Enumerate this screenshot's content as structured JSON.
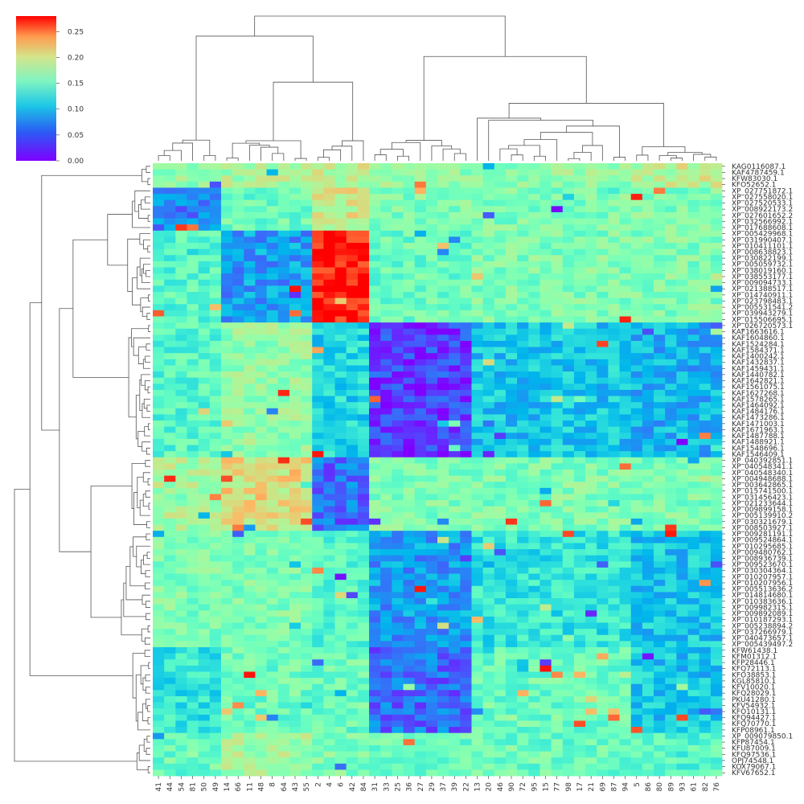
{
  "chart_data": {
    "type": "heatmap",
    "title": "",
    "xlabel": "",
    "ylabel": "",
    "colormap": "rainbow",
    "value_range": [
      0.0,
      0.28
    ],
    "colorbar": {
      "ticks": [
        0.0,
        0.05,
        0.1,
        0.15,
        0.2,
        0.25
      ],
      "tick_labels": [
        "0.00",
        "0.05",
        "0.10",
        "0.15",
        "0.20",
        "0.25"
      ]
    },
    "x_tick_labels": [
      "41",
      "44",
      "54",
      "81",
      "50",
      "49",
      "14",
      "66",
      "11",
      "48",
      "8",
      "64",
      "43",
      "55",
      "2",
      "4",
      "6",
      "42",
      "84",
      "31",
      "33",
      "25",
      "36",
      "27",
      "29",
      "37",
      "39",
      "22",
      "13",
      "20",
      "46",
      "90",
      "72",
      "95",
      "15",
      "77",
      "98",
      "17",
      "21",
      "69",
      "87",
      "94",
      "5",
      "86",
      "80",
      "89",
      "93",
      "61",
      "82",
      "76"
    ],
    "y_tick_labels": [
      "KAG0116087.1",
      "KAF4787459.1",
      "KFW83030.1",
      "KFO52652.1",
      "XP_027751872.1",
      "XP_027558020.1",
      "XP_027520533.1",
      "XP_008922173.2",
      "XP_027601652.2",
      "XP_032566992.1",
      "XP_017688608.1",
      "XP_005429968.1",
      "XP_031990407.1",
      "XP_010411101.1",
      "XP_008638823.1",
      "XP_030822199.1",
      "XP_005059732.1",
      "XP_038019160.1",
      "XP_038553177.1",
      "XP_009094733.1",
      "XP_021388517.1",
      "XP_014740911.1",
      "XP_023798483.1",
      "XP_005531541.2",
      "XP_039943279.1",
      "XP_015506695.1",
      "XP_026720573.1",
      "KAF1663616.1",
      "KAF1604860.1",
      "KAF1524284.1",
      "KAF1584371.1",
      "KAF1400242.1",
      "KAF1432837.1",
      "KAF1459431.1",
      "KAF1440782.1",
      "KAF1642821.1",
      "KAF1561075.1",
      "KAF1627268.1",
      "KAF1578265.1",
      "KAF1464092.1",
      "KAF1484176.1",
      "KAF1473286.1",
      "KAF1471003.1",
      "KAF1671963.1",
      "KAF1487788.1",
      "KAF1488921.1",
      "KAF1548696.1",
      "KAF1546409.1",
      "XP_040392851.1",
      "XP_040548341.1",
      "XP_040548340.1",
      "XP_004948688.1",
      "XP_003642865.1",
      "XP_015741500.1",
      "XP_031456423.1",
      "XP_021233644.1",
      "XP_009899158.1",
      "XP_005139910.2",
      "XP_030321679.1",
      "XP_008503927.1",
      "XP_009281191.1",
      "XP_009524864.1",
      "XP_010295685.1",
      "XP_009480762.1",
      "XP_008936739.1",
      "XP_009523670.1",
      "XP_030304364.1",
      "XP_010207957.1",
      "XP_010207956.1",
      "XP_005513636.2",
      "XP_014814680.1",
      "XP_010383636.1",
      "XP_009982315.1",
      "XP_009892089.1",
      "XP_010187293.1",
      "XP_005238894.2",
      "XP_037266979.1",
      "XP_040473657.1",
      "XP_005439497.2",
      "KFW61438.1",
      "KFM01312.1",
      "KFP28446.1",
      "KFQ72113.1",
      "KFO38853.1",
      "KGL85810.1",
      "KFV10020.1",
      "KFQ28029.1",
      "PKU41280.1",
      "KFV54932.1",
      "KFO10131.1",
      "KFQ94427.1",
      "KFQ70770.1",
      "KFP08961.1",
      "XP_009079850.1",
      "KFP87454.1",
      "KFU87009.1",
      "KFQ97536.1",
      "OPJ74548.1",
      "KOX79067.1",
      "KFV67652.1"
    ],
    "row_groups": [
      {
        "first_row": 0,
        "last_row": 3
      },
      {
        "first_row": 4,
        "last_row": 10
      },
      {
        "first_row": 11,
        "last_row": 25
      },
      {
        "first_row": 26,
        "last_row": 47
      },
      {
        "first_row": 48,
        "last_row": 59
      },
      {
        "first_row": 60,
        "last_row": 78
      },
      {
        "first_row": 79,
        "last_row": 92
      },
      {
        "first_row": 93,
        "last_row": 99
      }
    ],
    "col_groups": [
      {
        "first_col": 0,
        "last_col": 5
      },
      {
        "first_col": 6,
        "last_col": 13
      },
      {
        "first_col": 14,
        "last_col": 18
      },
      {
        "first_col": 19,
        "last_col": 27
      },
      {
        "first_col": 28,
        "last_col": 41
      },
      {
        "first_col": 42,
        "last_col": 49
      }
    ],
    "block_values": [
      [
        0.15,
        0.16,
        0.17,
        0.15,
        0.15,
        0.17
      ],
      [
        0.05,
        0.13,
        0.18,
        0.14,
        0.14,
        0.14
      ],
      [
        0.12,
        0.06,
        0.27,
        0.13,
        0.14,
        0.14
      ],
      [
        0.12,
        0.15,
        0.09,
        0.02,
        0.08,
        0.07
      ],
      [
        0.16,
        0.19,
        0.04,
        0.14,
        0.14,
        0.14
      ],
      [
        0.14,
        0.14,
        0.12,
        0.06,
        0.1,
        0.08
      ],
      [
        0.1,
        0.13,
        0.13,
        0.04,
        0.13,
        0.08
      ],
      [
        0.13,
        0.16,
        0.14,
        0.13,
        0.13,
        0.12
      ]
    ],
    "grid": false,
    "dendrograms": [
      "top",
      "left"
    ],
    "colorbar_position": "top-left"
  }
}
